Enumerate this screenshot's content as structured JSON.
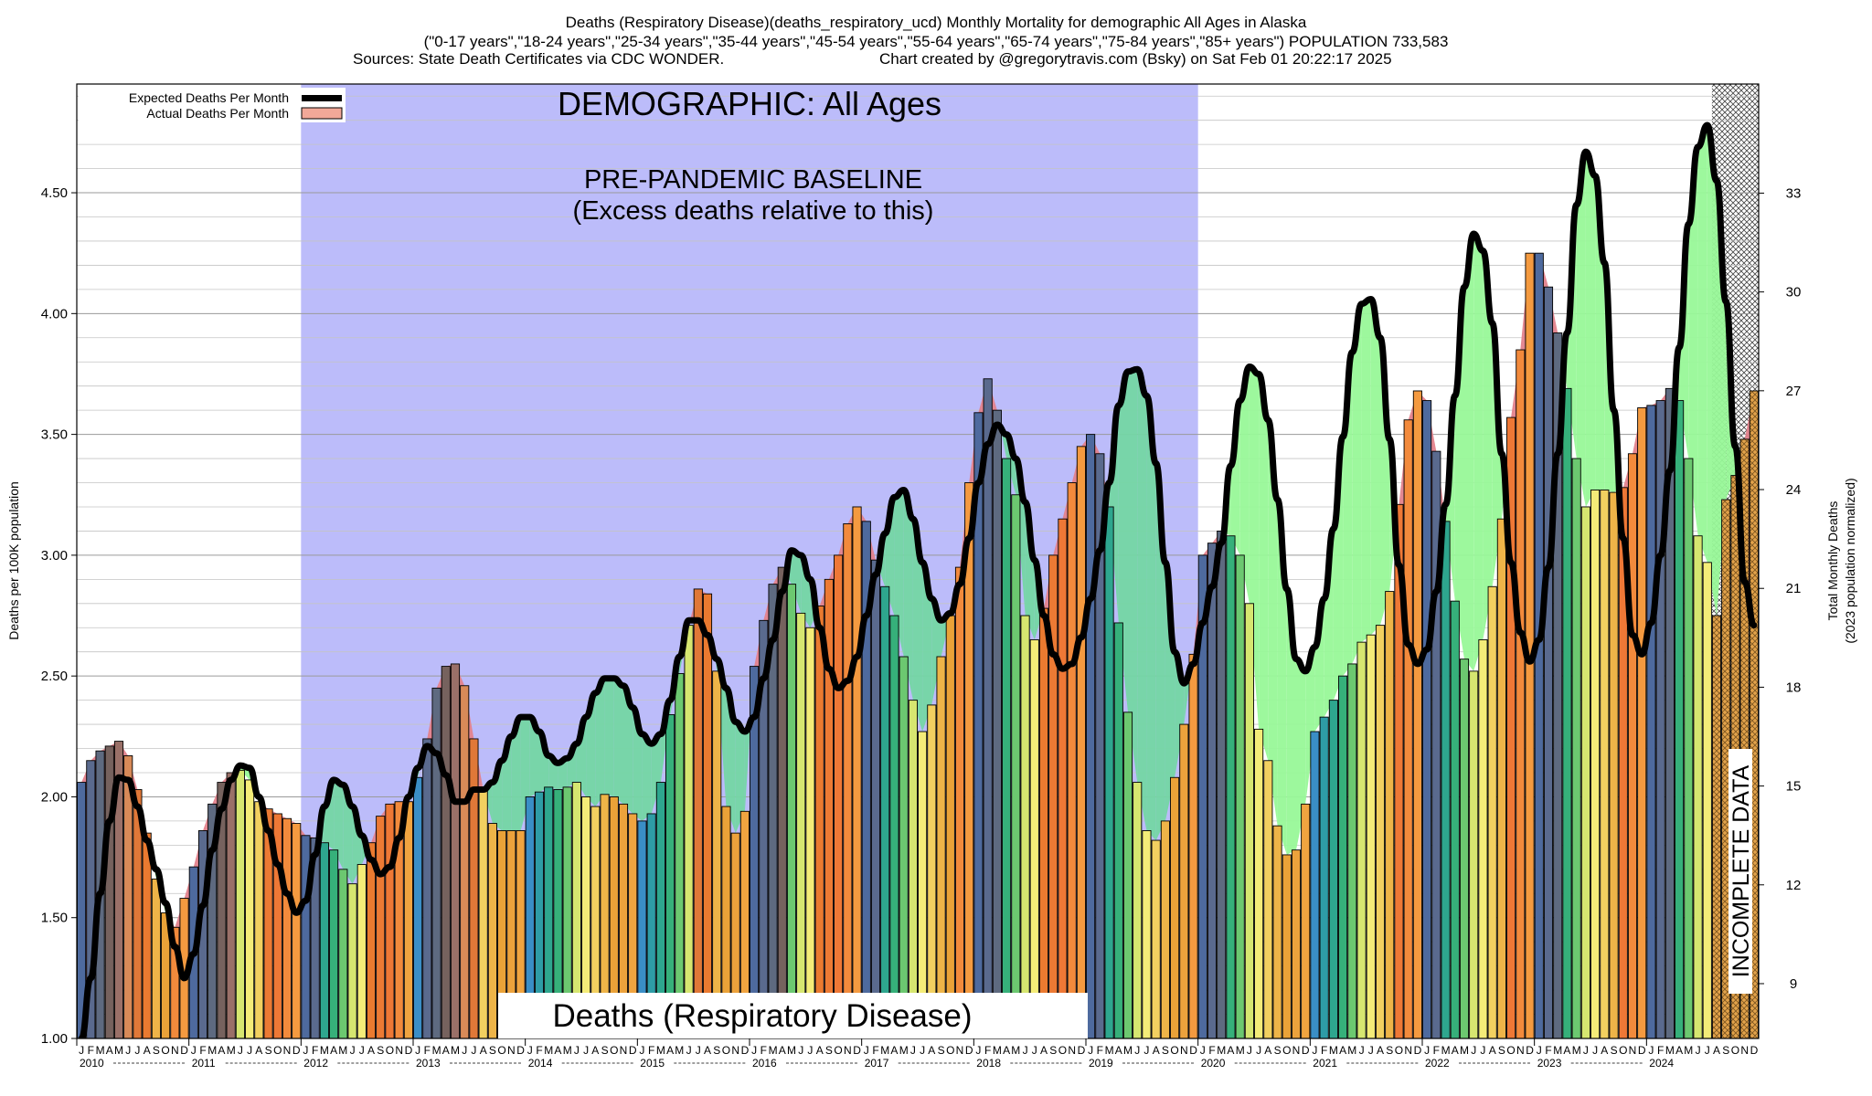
{
  "header": {
    "title_line1": "Deaths (Respiratory Disease)(deaths_respiratory_ucd) Monthly Mortality for demographic All Ages in Alaska",
    "title_line2": "(\"0-17 years\",\"18-24 years\",\"25-34 years\",\"35-44 years\",\"45-54 years\",\"55-64 years\",\"65-74 years\",\"75-84 years\",\"85+ years\") POPULATION 733,583",
    "title_line3_left": "Sources: State Death Certificates via CDC WONDER.",
    "title_line3_right": "Chart created by @gregorytravis.com (Bsky) on Sat Feb 01 20:22:17 2025"
  },
  "annotations": {
    "demographic": "DEMOGRAPHIC: All Ages",
    "baseline_line1": "PRE-PANDEMIC BASELINE",
    "baseline_line2": "(Excess deaths relative to this)",
    "cause_label": "Deaths (Respiratory Disease)",
    "incomplete": "INCOMPLETE DATA"
  },
  "legend": {
    "expected": "Expected Deaths Per Month",
    "actual": "Actual Deaths Per Month"
  },
  "colors": {
    "baseline_band": "#bcbcfa",
    "expected_line": "#000000",
    "excess_fill": "#e3828c",
    "deficit_fill_baseline": "#74d6a4",
    "deficit_fill": "#98f898",
    "month_colors": [
      "#3a8ec6",
      "#2e9ca6",
      "#2ea68e",
      "#36b07a",
      "#6cc870",
      "#d6e670",
      "#f4ec78",
      "#f2d060",
      "#eeb448",
      "#eaa238",
      "#eca23c",
      "#f0a440"
    ],
    "excess_month_colors": [
      "#4e6a9e",
      "#5a6a8e",
      "#5e6a80",
      "#76625e",
      "#9a7068",
      "#d88a58",
      "#e07838",
      "#ea7a30",
      "#ec7a34",
      "#ee7836",
      "#f28a3c",
      "#f49a40"
    ],
    "incomplete_fill": "#e0a050"
  },
  "month_letters": [
    "J",
    "F",
    "M",
    "A",
    "M",
    "J",
    "J",
    "A",
    "S",
    "O",
    "N",
    "D"
  ],
  "years": [
    "2010",
    "2011",
    "2012",
    "2013",
    "2014",
    "2015",
    "2016",
    "2017",
    "2018",
    "2019",
    "2020",
    "2021",
    "2022",
    "2023",
    "2024"
  ],
  "chart_data": {
    "type": "bar",
    "x_start": "2010-01",
    "x_end": "2024-12",
    "frequency": "monthly",
    "ylabel": "Deaths per 100K population",
    "ylabel_right_line1": "Total Monthly Deaths",
    "ylabel_right_line2": "(2023 population normalized)",
    "ylim": [
      1.0,
      4.95
    ],
    "yticks": [
      1.0,
      1.5,
      2.0,
      2.5,
      3.0,
      3.5,
      4.0,
      4.5
    ],
    "ytick_labels": [
      "1.00",
      "1.50",
      "2.00",
      "2.50",
      "3.00",
      "3.50",
      "4.00",
      "4.50"
    ],
    "y2ticks": [
      9,
      12,
      15,
      18,
      21,
      24,
      27,
      30,
      33
    ],
    "y2_per_unit": 7.33583,
    "baseline_period": [
      "2012-01",
      "2019-12"
    ],
    "incomplete_from": "2024-08",
    "legend_position": "top-left",
    "grid": "horizontal",
    "series": [
      {
        "name": "Actual Deaths Per Month",
        "values": [
          2.06,
          2.15,
          2.19,
          2.21,
          2.23,
          2.17,
          2.03,
          1.85,
          1.66,
          1.52,
          1.46,
          1.58,
          1.71,
          1.86,
          1.97,
          2.06,
          2.1,
          2.11,
          2.07,
          1.98,
          1.95,
          1.93,
          1.91,
          1.89,
          1.84,
          1.83,
          1.81,
          1.78,
          1.7,
          1.64,
          1.72,
          1.81,
          1.92,
          1.97,
          1.98,
          1.98,
          2.08,
          2.24,
          2.45,
          2.54,
          2.55,
          2.46,
          2.24,
          2.03,
          1.89,
          1.86,
          1.86,
          1.86,
          2.0,
          2.02,
          2.04,
          2.03,
          2.04,
          2.06,
          2.0,
          1.96,
          2.01,
          2.0,
          1.97,
          1.93,
          1.9,
          1.93,
          2.06,
          2.34,
          2.51,
          2.71,
          2.86,
          2.84,
          2.52,
          1.96,
          1.85,
          1.94,
          2.54,
          2.73,
          2.88,
          2.95,
          2.88,
          2.76,
          2.7,
          2.79,
          2.9,
          3.0,
          3.13,
          3.2,
          3.14,
          2.98,
          2.87,
          2.75,
          2.58,
          2.4,
          2.27,
          2.38,
          2.58,
          2.75,
          2.95,
          3.3,
          3.59,
          3.73,
          3.6,
          3.4,
          3.25,
          2.75,
          2.65,
          2.78,
          3.0,
          3.15,
          3.3,
          3.45,
          3.5,
          3.42,
          3.2,
          2.72,
          2.35,
          2.06,
          1.86,
          1.82,
          1.9,
          2.08,
          2.3,
          2.59,
          3.0,
          3.05,
          3.1,
          3.08,
          3.0,
          2.8,
          2.28,
          2.15,
          1.88,
          1.76,
          1.78,
          1.97,
          2.27,
          2.33,
          2.4,
          2.5,
          2.55,
          2.64,
          2.67,
          2.71,
          2.85,
          3.21,
          3.56,
          3.68,
          3.64,
          3.43,
          3.14,
          2.81,
          2.57,
          2.52,
          2.65,
          2.87,
          3.15,
          3.57,
          3.85,
          4.25,
          4.25,
          4.11,
          3.92,
          3.69,
          3.4,
          3.2,
          3.27,
          3.27,
          3.26,
          3.28,
          3.42,
          3.61,
          3.62,
          3.64,
          3.69,
          3.64,
          3.4,
          3.08,
          2.97,
          2.75,
          3.23,
          3.33,
          3.48,
          3.68
        ]
      },
      {
        "name": "Expected Deaths Per Month",
        "values": [
          1.0,
          1.25,
          1.6,
          1.9,
          2.08,
          2.07,
          1.96,
          1.82,
          1.7,
          1.56,
          1.38,
          1.25,
          1.35,
          1.55,
          1.78,
          1.95,
          2.07,
          2.13,
          2.12,
          2.0,
          1.86,
          1.72,
          1.6,
          1.52,
          1.57,
          1.76,
          1.96,
          2.07,
          2.05,
          1.96,
          1.84,
          1.74,
          1.68,
          1.71,
          1.83,
          2.0,
          2.12,
          2.21,
          2.18,
          2.09,
          1.98,
          1.98,
          2.03,
          2.03,
          2.06,
          2.15,
          2.25,
          2.33,
          2.33,
          2.27,
          2.17,
          2.14,
          2.16,
          2.22,
          2.33,
          2.43,
          2.49,
          2.49,
          2.46,
          2.37,
          2.26,
          2.22,
          2.26,
          2.4,
          2.58,
          2.73,
          2.73,
          2.67,
          2.57,
          2.45,
          2.31,
          2.27,
          2.33,
          2.49,
          2.65,
          2.85,
          3.02,
          3.0,
          2.9,
          2.7,
          2.53,
          2.45,
          2.48,
          2.58,
          2.75,
          2.92,
          3.09,
          3.24,
          3.27,
          3.15,
          2.97,
          2.82,
          2.73,
          2.76,
          2.88,
          3.07,
          3.3,
          3.46,
          3.54,
          3.5,
          3.4,
          3.22,
          2.98,
          2.75,
          2.59,
          2.53,
          2.55,
          2.66,
          2.82,
          3.02,
          3.3,
          3.62,
          3.76,
          3.77,
          3.66,
          3.38,
          2.97,
          2.6,
          2.47,
          2.55,
          2.72,
          2.87,
          3.05,
          3.37,
          3.64,
          3.78,
          3.75,
          3.56,
          3.23,
          2.86,
          2.57,
          2.52,
          2.62,
          2.82,
          3.11,
          3.49,
          3.84,
          4.04,
          4.06,
          3.9,
          3.48,
          2.96,
          2.63,
          2.55,
          2.61,
          2.85,
          3.21,
          3.66,
          4.11,
          4.33,
          4.26,
          3.96,
          3.42,
          2.97,
          2.68,
          2.56,
          2.65,
          2.95,
          3.42,
          3.92,
          4.45,
          4.67,
          4.57,
          4.21,
          3.6,
          3.07,
          2.67,
          2.59,
          2.72,
          3.0,
          3.35,
          3.86,
          4.37,
          4.69,
          4.78,
          4.55,
          4.05,
          3.45,
          2.89,
          2.71
        ]
      }
    ]
  }
}
